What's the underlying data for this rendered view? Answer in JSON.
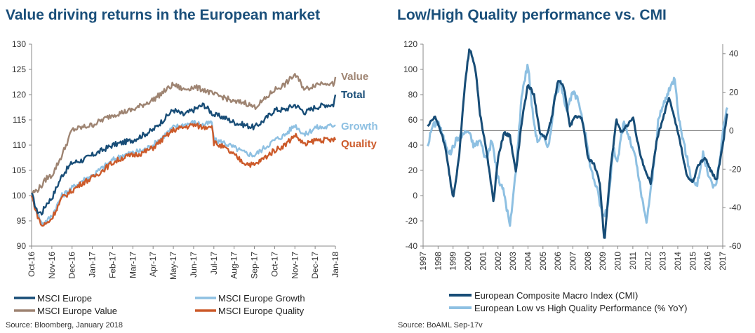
{
  "chart_data": [
    {
      "type": "line",
      "title": "Value driving returns in the European market",
      "source": "Source: Bloomberg, January 2018",
      "x_tick_labels": [
        "Oct-16",
        "Nov-16",
        "Dec-16",
        "Jan-17",
        "Feb-17",
        "Mar-17",
        "Apr-17",
        "May-17",
        "Jun-17",
        "Jul-17",
        "Aug-17",
        "Sep-17",
        "Oct-17",
        "Nov-17",
        "Dec-17",
        "Jan-18"
      ],
      "y_ticks": [
        90,
        95,
        100,
        105,
        110,
        115,
        120,
        125,
        130
      ],
      "ylim": [
        90,
        130
      ],
      "end_labels": [
        {
          "text": "Value",
          "color": "#9e8472",
          "value": 123.5
        },
        {
          "text": "Total",
          "color": "#184d77",
          "value": 120
        },
        {
          "text": "Growth",
          "color": "#8ec0e2",
          "value": 114
        },
        {
          "text": "Quality",
          "color": "#cc5a2a",
          "value": 111
        }
      ],
      "series": [
        {
          "name": "MSCI Europe",
          "color": "#184d77",
          "anchors": [
            [
              0,
              100.5
            ],
            [
              0.25,
              97
            ],
            [
              0.5,
              96.5
            ],
            [
              0.75,
              98.5
            ],
            [
              1,
              99.5
            ],
            [
              1.5,
              104
            ],
            [
              2,
              106.5
            ],
            [
              2.5,
              107
            ],
            [
              3,
              108
            ],
            [
              3.5,
              109
            ],
            [
              4,
              110
            ],
            [
              4.5,
              110.5
            ],
            [
              5,
              111
            ],
            [
              5.5,
              112
            ],
            [
              6,
              113
            ],
            [
              7,
              117
            ],
            [
              7.5,
              116
            ],
            [
              8,
              117
            ],
            [
              8.5,
              118
            ],
            [
              9,
              116
            ],
            [
              9.5,
              115.5
            ],
            [
              10,
              114.5
            ],
            [
              10.5,
              114
            ],
            [
              11,
              113.5
            ],
            [
              11.5,
              115
            ],
            [
              12,
              117
            ],
            [
              12.5,
              117
            ],
            [
              13,
              118
            ],
            [
              13.5,
              116.5
            ],
            [
              14,
              117.5
            ],
            [
              14.5,
              118
            ],
            [
              14.9,
              118
            ],
            [
              15,
              120
            ]
          ]
        },
        {
          "name": "MSCI Europe Growth",
          "color": "#8ec0e2",
          "anchors": [
            [
              0,
              100
            ],
            [
              0.25,
              97
            ],
            [
              0.5,
              94.5
            ],
            [
              0.75,
              95
            ],
            [
              1,
              96
            ],
            [
              1.5,
              100
            ],
            [
              2,
              101.5
            ],
            [
              2.5,
              103
            ],
            [
              3,
              104
            ],
            [
              3.5,
              105.5
            ],
            [
              4,
              107
            ],
            [
              4.5,
              108
            ],
            [
              5,
              108.5
            ],
            [
              5.5,
              109
            ],
            [
              6,
              110
            ],
            [
              7,
              113.5
            ],
            [
              7.5,
              114
            ],
            [
              8,
              114.5
            ],
            [
              8.5,
              114
            ],
            [
              8.9,
              114.5
            ],
            [
              9,
              111
            ],
            [
              9.5,
              110.5
            ],
            [
              10,
              109.5
            ],
            [
              10.5,
              108.5
            ],
            [
              11,
              108
            ],
            [
              11.5,
              109.5
            ],
            [
              12,
              111
            ],
            [
              12.5,
              112
            ],
            [
              13,
              114
            ],
            [
              13.5,
              112
            ],
            [
              14,
              113.5
            ],
            [
              14.5,
              113.5
            ],
            [
              14.9,
              114
            ],
            [
              15,
              114
            ]
          ]
        },
        {
          "name": "MSCI Europe Value",
          "color": "#9e8472",
          "anchors": [
            [
              0,
              100.5
            ],
            [
              0.25,
              101
            ],
            [
              0.5,
              102
            ],
            [
              0.75,
              103.5
            ],
            [
              1,
              104
            ],
            [
              1.5,
              108
            ],
            [
              2,
              113
            ],
            [
              2.5,
              113.5
            ],
            [
              3,
              114
            ],
            [
              3.5,
              115
            ],
            [
              4,
              116
            ],
            [
              4.5,
              116.5
            ],
            [
              5,
              117
            ],
            [
              5.5,
              118
            ],
            [
              6,
              119
            ],
            [
              7,
              122
            ],
            [
              7.5,
              121
            ],
            [
              8,
              121.5
            ],
            [
              8.5,
              121
            ],
            [
              9,
              120
            ],
            [
              9.5,
              119.5
            ],
            [
              10,
              118.5
            ],
            [
              10.5,
              118.5
            ],
            [
              11,
              117.5
            ],
            [
              11.5,
              119
            ],
            [
              12,
              121
            ],
            [
              12.5,
              122
            ],
            [
              13,
              124
            ],
            [
              13.5,
              121
            ],
            [
              14,
              122
            ],
            [
              14.5,
              122.5
            ],
            [
              14.9,
              122
            ],
            [
              15,
              123.5
            ]
          ]
        },
        {
          "name": "MSCI Europe Quality",
          "color": "#cc5a2a",
          "anchors": [
            [
              0,
              100
            ],
            [
              0.25,
              96.5
            ],
            [
              0.5,
              94
            ],
            [
              0.75,
              94.5
            ],
            [
              1,
              95.5
            ],
            [
              1.5,
              99.5
            ],
            [
              2,
              101
            ],
            [
              2.5,
              102.5
            ],
            [
              3,
              103.5
            ],
            [
              3.5,
              105
            ],
            [
              4,
              106.5
            ],
            [
              4.5,
              107.5
            ],
            [
              5,
              108
            ],
            [
              5.5,
              108.5
            ],
            [
              6,
              109.5
            ],
            [
              7,
              113
            ],
            [
              7.5,
              113.5
            ],
            [
              8,
              114
            ],
            [
              8.5,
              113.5
            ],
            [
              8.9,
              114
            ],
            [
              9,
              110.5
            ],
            [
              9.5,
              109.5
            ],
            [
              10,
              108
            ],
            [
              10.5,
              106.5
            ],
            [
              11,
              106
            ],
            [
              11.5,
              107.5
            ],
            [
              12,
              109
            ],
            [
              12.5,
              110
            ],
            [
              13,
              112
            ],
            [
              13.5,
              110
            ],
            [
              14,
              111
            ],
            [
              14.5,
              111
            ],
            [
              14.9,
              111
            ],
            [
              15,
              111
            ]
          ]
        }
      ],
      "legend": [
        {
          "label": "MSCI Europe",
          "color": "#184d77"
        },
        {
          "label": "MSCI Europe Growth",
          "color": "#8ec0e2"
        },
        {
          "label": "MSCI Europe Value",
          "color": "#9e8472"
        },
        {
          "label": "MSCI Europe Quality",
          "color": "#cc5a2a"
        }
      ]
    },
    {
      "type": "line",
      "title": "Low/High Quality performance vs. CMI",
      "source": "Source: BoAML Sep-17v",
      "x_tick_labels": [
        "1997",
        "1998",
        "1999",
        "2000",
        "2001",
        "2002",
        "2003",
        "2004",
        "2005",
        "2006",
        "2007",
        "2008",
        "2009",
        "2010",
        "2011",
        "2012",
        "2013",
        "2014",
        "2015",
        "2016",
        "2017"
      ],
      "y_left_ticks": [
        -40,
        -20,
        0,
        20,
        40,
        60,
        80,
        100,
        120
      ],
      "ylim_left": [
        -40,
        120
      ],
      "y_right_ticks": [
        -60,
        -40,
        -20,
        0,
        20,
        40
      ],
      "ylim_right": [
        -60,
        45
      ],
      "reference_line": {
        "axis": "right",
        "value": 0
      },
      "series": [
        {
          "name": "European Composite Macro Index (CMI)",
          "color": "#184d77",
          "axis": "left",
          "anchors": [
            [
              1997.3,
              55
            ],
            [
              1997.8,
              62
            ],
            [
              1998.0,
              57
            ],
            [
              1998.5,
              38
            ],
            [
              1999.0,
              -3
            ],
            [
              1999.4,
              30
            ],
            [
              1999.8,
              90
            ],
            [
              2000.1,
              117
            ],
            [
              2000.5,
              100
            ],
            [
              2000.8,
              65
            ],
            [
              2001.3,
              30
            ],
            [
              2001.7,
              -5
            ],
            [
              2002.0,
              30
            ],
            [
              2002.4,
              50
            ],
            [
              2002.8,
              47
            ],
            [
              2003.2,
              18
            ],
            [
              2003.6,
              60
            ],
            [
              2004.0,
              88
            ],
            [
              2004.4,
              80
            ],
            [
              2004.8,
              50
            ],
            [
              2005.2,
              45
            ],
            [
              2005.6,
              62
            ],
            [
              2006.0,
              92
            ],
            [
              2006.4,
              86
            ],
            [
              2006.8,
              55
            ],
            [
              2007.2,
              63
            ],
            [
              2007.6,
              62
            ],
            [
              2008.0,
              30
            ],
            [
              2008.4,
              25
            ],
            [
              2008.8,
              10
            ],
            [
              2009.1,
              -37
            ],
            [
              2009.5,
              20
            ],
            [
              2009.9,
              60
            ],
            [
              2010.2,
              50
            ],
            [
              2010.6,
              55
            ],
            [
              2011.0,
              62
            ],
            [
              2011.4,
              38
            ],
            [
              2011.8,
              20
            ],
            [
              2012.2,
              10
            ],
            [
              2012.6,
              45
            ],
            [
              2013.0,
              60
            ],
            [
              2013.4,
              78
            ],
            [
              2013.8,
              60
            ],
            [
              2014.2,
              40
            ],
            [
              2014.6,
              15
            ],
            [
              2015.0,
              10
            ],
            [
              2015.4,
              25
            ],
            [
              2015.8,
              30
            ],
            [
              2016.2,
              20
            ],
            [
              2016.6,
              12
            ],
            [
              2017.0,
              40
            ],
            [
              2017.3,
              65
            ]
          ]
        },
        {
          "name": "European Low vs High Quality Performance (% YoY)",
          "color": "#8ec0e2",
          "axis": "right",
          "anchors": [
            [
              1997.3,
              -8
            ],
            [
              1997.6,
              2
            ],
            [
              1998.0,
              5
            ],
            [
              1998.4,
              -5
            ],
            [
              1998.8,
              -12
            ],
            [
              1999.2,
              -5
            ],
            [
              1999.6,
              -2
            ],
            [
              2000.0,
              0
            ],
            [
              2000.4,
              -8
            ],
            [
              2000.8,
              -5
            ],
            [
              2001.2,
              -15
            ],
            [
              2001.6,
              -5
            ],
            [
              2002.0,
              -25
            ],
            [
              2002.4,
              -32
            ],
            [
              2002.8,
              -50
            ],
            [
              2003.2,
              -20
            ],
            [
              2003.6,
              20
            ],
            [
              2004.0,
              35
            ],
            [
              2004.3,
              10
            ],
            [
              2004.6,
              -5
            ],
            [
              2005.0,
              -3
            ],
            [
              2005.4,
              -8
            ],
            [
              2005.8,
              18
            ],
            [
              2006.2,
              25
            ],
            [
              2006.6,
              10
            ],
            [
              2007.0,
              20
            ],
            [
              2007.4,
              15
            ],
            [
              2007.8,
              0
            ],
            [
              2008.2,
              -20
            ],
            [
              2008.6,
              -30
            ],
            [
              2009.0,
              -45
            ],
            [
              2009.3,
              -40
            ],
            [
              2009.7,
              -10
            ],
            [
              2010.0,
              -15
            ],
            [
              2010.4,
              5
            ],
            [
              2010.8,
              -5
            ],
            [
              2011.2,
              -15
            ],
            [
              2011.6,
              -35
            ],
            [
              2011.9,
              -48
            ],
            [
              2012.3,
              -25
            ],
            [
              2012.7,
              5
            ],
            [
              2013.1,
              15
            ],
            [
              2013.5,
              22
            ],
            [
              2013.8,
              28
            ],
            [
              2014.1,
              5
            ],
            [
              2014.5,
              -10
            ],
            [
              2014.9,
              -25
            ],
            [
              2015.3,
              -28
            ],
            [
              2015.7,
              -12
            ],
            [
              2016.1,
              -25
            ],
            [
              2016.5,
              -30
            ],
            [
              2016.8,
              -15
            ],
            [
              2017.1,
              5
            ],
            [
              2017.3,
              12
            ]
          ]
        }
      ],
      "legend": [
        {
          "label": "European Composite Macro Index (CMI)",
          "color": "#184d77"
        },
        {
          "label": "European Low vs High Quality Performance (% YoY)",
          "color": "#8ec0e2"
        }
      ]
    }
  ]
}
